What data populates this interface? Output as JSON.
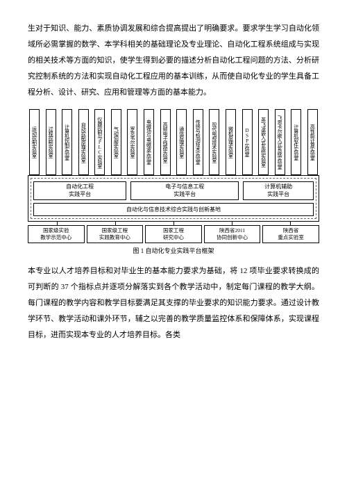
{
  "para1": "生对于知识、能力、素质协调发展和综合提高提出了明确要求。要求学生学习自动化领域所必需掌握的数学、本学科相关的基础理论及专业理论、自动化工程系统组成与实现的相关技术等方面的知识，使学生得到必要的描述分析自动化工程问题的方法、分析研究控制系统的方法和实现自动化工程应用的基本训练，从而使自动化专业的学生具备工程分析、设计、研究、应用和管理等方面的基本能力。",
  "labs": [
    "运动控制实验室",
    "过程控制实验室",
    "计算机控制实验室",
    "自动控制原理实验室",
    "仪器控制与PLC实验室",
    "气动伺服实验室",
    "罗克韦尔实验室",
    "电磁场与电磁波实验室",
    "高频电子线路实验室",
    "通信原理实验室",
    "传感与检测技术实验室",
    "现代电视技术实验室",
    "微机原理实验室",
    "DSP实验室",
    "英飞凌嵌入式系统实验室",
    "飞思卡尔嵌入式系统实验室",
    "计算机软件实验室",
    "高性能计算实验室"
  ],
  "platforms": [
    "自动化工程\n实践平台",
    "电子与信息工程\n实践平台",
    "计算机辅助\n实践平台"
  ],
  "base": "自动化与信息技术综合实践与创新基地",
  "centers": [
    "国家级实验\n教学示范中心",
    "国家级工程\n实践教育中心",
    "国家工程\n研究中心",
    "陕西省2011\n协同创新中心",
    "陕西省\n重点实验室"
  ],
  "caption": "图 1  自动化专业实践平台框架",
  "para2": "本专业以人才培养目标和对毕业生的基本能力要求为基础，将 12 项毕业要求转换成的可判断的 37 个指标点并逐项分解落实到各个教学活动中，制定每门课程的教学大纲。每门课程的教学内容和教学目标要满足其支撑的毕业要求的知识能力要求。通过设计教学环节、教学活动和课外环节，辅之以完善的教学质量监控体系和保障体系，实现课程目标，进而实现本专业的人才培养目标。各类"
}
